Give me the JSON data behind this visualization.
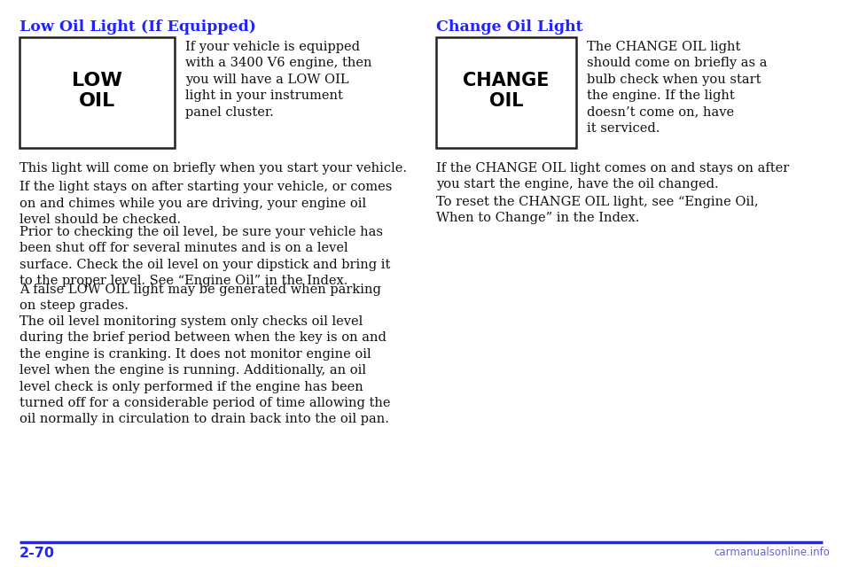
{
  "bg_color": "#ffffff",
  "title_color": "#2222ff",
  "body_color": "#111111",
  "footer_color": "#2222ff",
  "divider_color": "#2222ff",
  "page_num": "2-70",
  "watermark": "carmanualsonline.info",
  "left_heading": "Low Oil Light (If Equipped)",
  "left_box_label": "LOW\nOIL",
  "left_box_desc": "If your vehicle is equipped\nwith a 3400 V6 engine, then\nyou will have a LOW OIL\nlight in your instrument\npanel cluster.",
  "left_body": [
    "This light will come on briefly when you start your vehicle.",
    "If the light stays on after starting your vehicle, or comes\non and chimes while you are driving, your engine oil\nlevel should be checked.",
    "Prior to checking the oil level, be sure your vehicle has\nbeen shut off for several minutes and is on a level\nsurface. Check the oil level on your dipstick and bring it\nto the proper level. See “Engine Oil” in the Index.",
    "A false LOW OIL light may be generated when parking\non steep grades.",
    "The oil level monitoring system only checks oil level\nduring the brief period between when the key is on and\nthe engine is cranking. It does not monitor engine oil\nlevel when the engine is running. Additionally, an oil\nlevel check is only performed if the engine has been\nturned off for a considerable period of time allowing the\noil normally in circulation to drain back into the oil pan."
  ],
  "right_heading": "Change Oil Light",
  "right_box_label": "CHANGE\nOIL",
  "right_box_desc": "The CHANGE OIL light\nshould come on briefly as a\nbulb check when you start\nthe engine. If the light\ndoesn’t come on, have\nit serviced.",
  "right_body": [
    "If the CHANGE OIL light comes on and stays on after\nyou start the engine, have the oil changed.",
    "To reset the CHANGE OIL light, see “Engine Oil,\nWhen to Change” in the Index."
  ],
  "fig_w": 9.6,
  "fig_h": 6.4,
  "dpi": 100
}
